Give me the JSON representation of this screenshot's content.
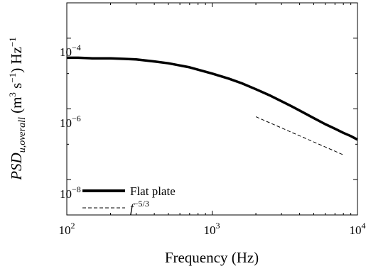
{
  "chart_data": {
    "type": "line",
    "xlabel": "Frequency (Hz)",
    "ylabel": {
      "main": "PSD",
      "subscript": "u,overall",
      "units_open": " (m",
      "units_sup1": "3",
      "units_mid": " s",
      "units_sup2": "−1",
      "units_close": ") Hz",
      "units_sup3": "−1"
    },
    "x_scale": "log",
    "y_scale": "log",
    "xlim": [
      100,
      10000
    ],
    "ylim": [
      1e-09,
      0.001
    ],
    "grid": false,
    "legend_position": "bottom-left",
    "x_ticks": [
      {
        "value": 100,
        "base": "10",
        "exp": "2"
      },
      {
        "value": 1000,
        "base": "10",
        "exp": "3"
      },
      {
        "value": 10000,
        "base": "10",
        "exp": "4"
      }
    ],
    "y_ticks": [
      {
        "value": 1e-08,
        "base": "10",
        "exp": "−8"
      },
      {
        "value": 1e-06,
        "base": "10",
        "exp": "−6"
      },
      {
        "value": 0.0001,
        "base": "10",
        "exp": "−4"
      }
    ],
    "series": [
      {
        "name": "Flat plate",
        "style": "solid",
        "color": "#000000",
        "x": [
          100,
          120,
          150,
          200,
          250,
          300,
          400,
          500,
          700,
          1000,
          1300,
          1600,
          2000,
          2500,
          3000,
          3500,
          4000,
          5000,
          6000,
          7000,
          8000,
          9000,
          10000
        ],
        "y": [
          2.8e-05,
          2.8e-05,
          2.7e-05,
          2.7e-05,
          2.6e-05,
          2.5e-05,
          2.2e-05,
          1.95e-05,
          1.5e-05,
          1e-05,
          7.2e-06,
          5.3e-06,
          3.6e-06,
          2.4e-06,
          1.65e-06,
          1.2e-06,
          9e-07,
          5.5e-07,
          3.7e-07,
          2.75e-07,
          2.1e-07,
          1.7e-07,
          1.35e-07
        ]
      },
      {
        "name": "f",
        "name_superscript": "−5/3",
        "style": "dashed",
        "color": "#000000",
        "x": [
          2000,
          8000
        ],
        "y": [
          6e-07,
          5e-08
        ]
      }
    ]
  }
}
